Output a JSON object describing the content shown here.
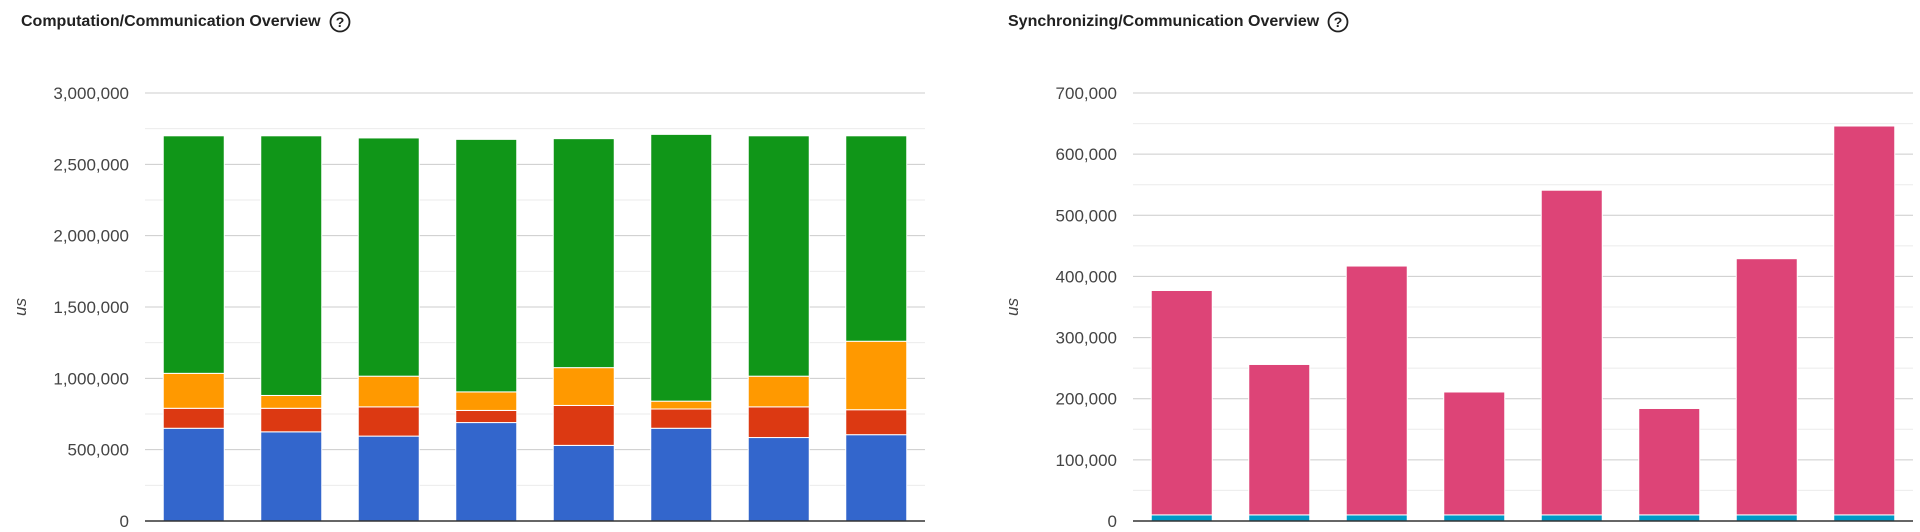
{
  "colors": {
    "grid_major": "#cccccc",
    "grid_minor": "#ebebeb",
    "axis": "#333333",
    "blue": "#3366cc",
    "red": "#dc3912",
    "orange": "#ff9900",
    "green": "#109618",
    "pink": "#dd4477",
    "teal": "#0099c6"
  },
  "left": {
    "title": "Computation/Communication Overview",
    "help_icon": "question-circle-icon"
  },
  "right": {
    "title": "Synchronizing/Communication Overview",
    "help_icon": "question-circle-icon"
  },
  "chart_data": [
    {
      "type": "bar",
      "stacked": true,
      "title": "Computation/Communication Overview",
      "ylabel": "us",
      "xlabel": "",
      "ylim": [
        0,
        3000000
      ],
      "yticks": [
        0,
        500000,
        1000000,
        1500000,
        2000000,
        2500000,
        3000000
      ],
      "ytick_labels": [
        "0",
        "500,000",
        "1,000,000",
        "1,500,000",
        "2,000,000",
        "2,500,000",
        "3,000,000"
      ],
      "grid": true,
      "categories": [
        "",
        "",
        "",
        "",
        "",
        "",
        "",
        ""
      ],
      "series": [
        {
          "color": "#3366cc",
          "values": [
            650000,
            625000,
            595000,
            690000,
            530000,
            650000,
            585000,
            605000
          ]
        },
        {
          "color": "#dc3912",
          "values": [
            140000,
            165000,
            205000,
            85000,
            280000,
            135000,
            215000,
            175000
          ]
        },
        {
          "color": "#ff9900",
          "values": [
            245000,
            90000,
            215000,
            130000,
            265000,
            55000,
            215000,
            480000
          ]
        },
        {
          "color": "#109618",
          "values": [
            1665000,
            1820000,
            1670000,
            1770000,
            1605000,
            1870000,
            1685000,
            1440000
          ]
        }
      ]
    },
    {
      "type": "bar",
      "stacked": true,
      "title": "Synchronizing/Communication Overview",
      "ylabel": "us",
      "xlabel": "",
      "ylim": [
        0,
        700000
      ],
      "yticks": [
        0,
        100000,
        200000,
        300000,
        400000,
        500000,
        600000,
        700000
      ],
      "ytick_labels": [
        "0",
        "100,000",
        "200,000",
        "300,000",
        "400,000",
        "500,000",
        "600,000",
        "700,000"
      ],
      "grid": true,
      "categories": [
        "",
        "",
        "",
        "",
        "",
        "",
        "",
        ""
      ],
      "series": [
        {
          "color": "#0099c6",
          "values": [
            10000,
            10000,
            10000,
            10000,
            10000,
            10000,
            10000,
            10000
          ]
        },
        {
          "color": "#dd4477",
          "values": [
            367000,
            246000,
            407000,
            201000,
            531000,
            174000,
            419000,
            636000
          ]
        }
      ]
    }
  ]
}
